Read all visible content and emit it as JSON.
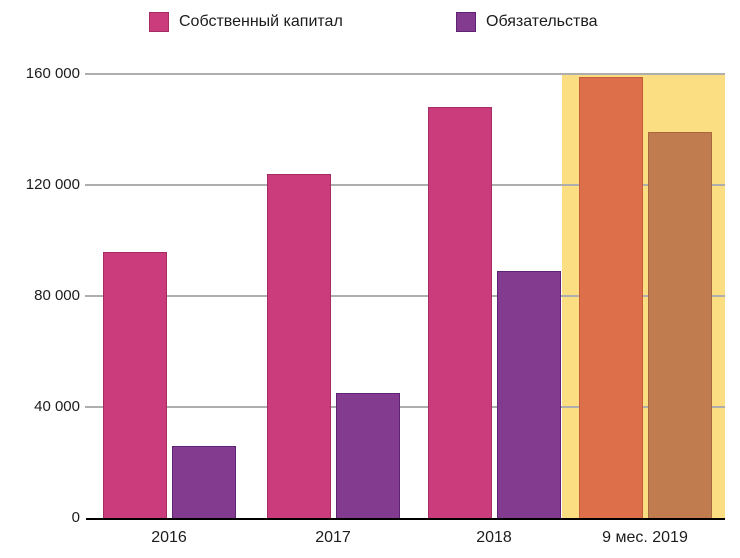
{
  "chart_data": {
    "type": "bar",
    "categories": [
      "2016",
      "2017",
      "2018",
      "9 мес. 2019"
    ],
    "series": [
      {
        "name": "Собственный капитал",
        "color": "#ca3c7b",
        "border_color": "#a52c63",
        "values": [
          96000,
          124000,
          148000,
          159000
        ]
      },
      {
        "name": "Обязательства",
        "color": "#833b90",
        "border_color": "#5e2373",
        "values": [
          26000,
          45000,
          89000,
          139000
        ]
      }
    ],
    "highlight": {
      "category": "9 мес. 2019",
      "band_color": "#fcde82",
      "bar_colors": [
        {
          "color": "#dd6f4b",
          "border_color": "#c55d3c"
        },
        {
          "color": "#c07b4e",
          "border_color": "#a66840"
        }
      ]
    },
    "title": "",
    "xlabel": "",
    "ylabel": "",
    "ylim": [
      0,
      160000
    ],
    "yticks": [
      {
        "value": 0,
        "label": "0"
      },
      {
        "value": 40000,
        "label": "40 000"
      },
      {
        "value": 80000,
        "label": "80 000"
      },
      {
        "value": 120000,
        "label": "120 000"
      },
      {
        "value": 160000,
        "label": "160 000"
      }
    ],
    "grid": true,
    "gridline_color": "#aeaeae",
    "axis_line_color": "#000000",
    "text_color": "#1c1c1c",
    "legend_position": "top"
  }
}
